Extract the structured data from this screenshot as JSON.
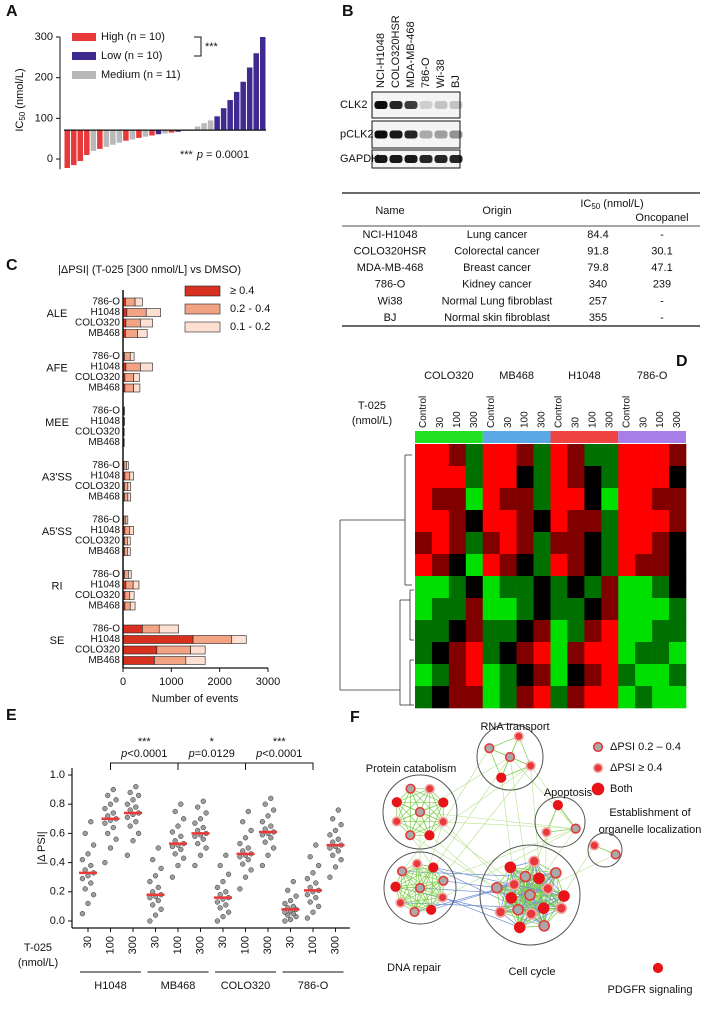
{
  "panel_labels": [
    "A",
    "B",
    "C",
    "D",
    "E",
    "F"
  ],
  "chart_data": [
    {
      "type": "bar",
      "ylabel": {
        "main": "IC",
        "sub": "50",
        "unit": " (nmol/L)"
      },
      "ylim": [
        -25,
        300
      ],
      "yticks": [
        0,
        100,
        200,
        300
      ],
      "baseline": 71,
      "series": [
        {
          "name": "High (n = 10)",
          "color": "#e8393a",
          "values": [
            -22,
            -15,
            -5,
            10,
            null,
            25,
            null,
            null,
            null,
            45,
            null,
            52,
            null,
            58,
            null,
            null,
            65,
            null,
            null,
            70,
            null,
            null,
            null,
            null,
            null,
            null,
            null,
            null,
            null,
            null,
            null
          ]
        },
        {
          "name": "Low (n = 10)",
          "color": "#3f2a8f",
          "values": [
            null,
            null,
            null,
            null,
            null,
            null,
            null,
            null,
            null,
            null,
            null,
            null,
            null,
            null,
            61,
            null,
            null,
            67,
            null,
            null,
            null,
            null,
            null,
            105,
            125,
            145,
            165,
            190,
            225,
            260,
            300
          ]
        },
        {
          "name": "Medium (n = 11)",
          "color": "#b9b9b9",
          "values": [
            null,
            null,
            null,
            null,
            20,
            null,
            30,
            35,
            40,
            null,
            48,
            null,
            55,
            null,
            null,
            63,
            null,
            null,
            69,
            null,
            80,
            88,
            95,
            null,
            null,
            null,
            null,
            null,
            null,
            null,
            null
          ]
        }
      ],
      "legend_bracket": "***",
      "pvalue": {
        "stars": "***",
        "p": "p",
        "text": "= 0.0001"
      }
    },
    {
      "type": "stacked_barh",
      "title": "|ΔPSI|  (T-025 [300 nmol/L] vs DMSO)",
      "groups": [
        "ALE",
        "AFE",
        "MEE",
        "A3'SS",
        "A5'SS",
        "RI",
        "SE"
      ],
      "cell_lines": [
        "786-O",
        "H1048",
        "COLO320",
        "MB468"
      ],
      "xlim": [
        0,
        3000
      ],
      "xticks": [
        0,
        1000,
        2000,
        3000
      ],
      "xlabel": "Number of events",
      "series": [
        {
          "name": "≥ 0.4",
          "color": "#d7301f",
          "values": [
            50,
            80,
            60,
            50,
            30,
            60,
            40,
            40,
            5,
            5,
            5,
            5,
            20,
            40,
            30,
            30,
            20,
            40,
            30,
            30,
            30,
            60,
            40,
            40,
            400,
            1450,
            700,
            650
          ]
        },
        {
          "name": "0.2 - 0.4",
          "color": "#f2a383",
          "values": [
            200,
            400,
            300,
            250,
            120,
            300,
            180,
            180,
            15,
            15,
            10,
            10,
            50,
            100,
            70,
            70,
            40,
            100,
            60,
            60,
            80,
            150,
            100,
            110,
            350,
            800,
            700,
            650
          ]
        },
        {
          "name": "0.1 - 0.2",
          "color": "#fde0d2",
          "values": [
            150,
            300,
            250,
            200,
            80,
            250,
            120,
            130,
            10,
            10,
            10,
            10,
            40,
            80,
            60,
            60,
            40,
            80,
            60,
            60,
            60,
            120,
            90,
            100,
            400,
            300,
            300,
            400
          ]
        }
      ]
    },
    {
      "type": "heatmap",
      "cell_lines": [
        "COLO320",
        "MB468",
        "H1048",
        "786-O"
      ],
      "doses": [
        "Control",
        "30",
        "100",
        "300"
      ],
      "dose_label": [
        "T-025",
        "(nmol/L)"
      ],
      "group_colors": [
        "#22e022",
        "#5aa9e6",
        "#ee4444",
        "#a77ee8"
      ],
      "colors": {
        "high": "#ff0000",
        "mid": "#000000",
        "low": "#00e000"
      },
      "clim": [
        -1,
        1
      ],
      "values": [
        [
          1,
          1,
          0.5,
          -0.5,
          1,
          1,
          0.5,
          -0.5,
          1,
          0.5,
          -0.5,
          -0.5,
          1,
          1,
          1,
          0.5
        ],
        [
          1,
          1,
          1,
          -0.5,
          1,
          1,
          0,
          -0.5,
          1,
          0.5,
          0,
          -0.5,
          1,
          1,
          1,
          0
        ],
        [
          1,
          0.5,
          0.5,
          -1,
          1,
          0.5,
          0.5,
          -0.5,
          1,
          1,
          0,
          -1,
          1,
          1,
          0.5,
          0.5
        ],
        [
          1,
          1,
          0.5,
          0,
          1,
          1,
          0.5,
          0,
          1,
          0.5,
          0.5,
          -0.5,
          1,
          1,
          1,
          0.5
        ],
        [
          0.5,
          1,
          0.5,
          -0.5,
          0.5,
          1,
          0.5,
          -0.5,
          0.5,
          0.5,
          0,
          -0.5,
          1,
          1,
          0.5,
          0
        ],
        [
          1,
          0.5,
          0,
          -1,
          1,
          0.5,
          0,
          -0.5,
          1,
          0.5,
          0,
          -0.5,
          1,
          0.5,
          0.5,
          0
        ],
        [
          -1,
          -1,
          -0.5,
          0,
          -1,
          -0.5,
          -0.5,
          0,
          -0.5,
          0,
          -0.5,
          0.5,
          -1,
          -1,
          -0.5,
          0
        ],
        [
          -1,
          -0.5,
          -0.5,
          0.5,
          -1,
          -1,
          -0.5,
          0,
          -0.5,
          -0.5,
          0,
          0.5,
          -1,
          -1,
          -1,
          -0.5
        ],
        [
          -0.5,
          -0.5,
          0,
          0.5,
          -0.5,
          -0.5,
          0,
          0.5,
          -1,
          -0.5,
          0.5,
          1,
          -1,
          -1,
          -0.5,
          -0.5
        ],
        [
          -0.5,
          0,
          0.5,
          1,
          -0.5,
          0,
          0.5,
          1,
          -1,
          0.5,
          1,
          1,
          -1,
          -0.5,
          -0.5,
          -1
        ],
        [
          -1,
          -0.5,
          0.5,
          1,
          -1,
          -0.5,
          0,
          0.5,
          -1,
          0,
          0.5,
          1,
          -0.5,
          -1,
          -1,
          -0.5
        ],
        [
          -0.5,
          0,
          0.5,
          0.5,
          -1,
          -0.5,
          0.5,
          1,
          -0.5,
          0.5,
          1,
          1,
          -1,
          -0.5,
          -1,
          -1
        ]
      ]
    },
    {
      "type": "strip",
      "ylabel": "|Δ PSI|",
      "dose_label": [
        "T-025",
        "(nmol/L)"
      ],
      "groups": [
        "H1048",
        "MB468",
        "COLO320",
        "786-O"
      ],
      "doses": [
        "30",
        "100",
        "300"
      ],
      "ylim": [
        0,
        1
      ],
      "yticks": [
        {
          "value": 0,
          "label": "0.0"
        },
        0.2,
        0.4,
        0.6,
        0.8,
        {
          "value": 1,
          "label": "1.0"
        }
      ],
      "point_color": "#8c8c8c",
      "median_color": "#e8393a",
      "values": [
        [
          0.05,
          0.12,
          0.18,
          0.22,
          0.26,
          0.29,
          0.31,
          0.33,
          0.35,
          0.38,
          0.42,
          0.46,
          0.52,
          0.6,
          0.68
        ],
        [
          0.4,
          0.5,
          0.56,
          0.6,
          0.64,
          0.67,
          0.69,
          0.7,
          0.72,
          0.74,
          0.77,
          0.8,
          0.83,
          0.86,
          0.9
        ],
        [
          0.45,
          0.55,
          0.6,
          0.65,
          0.68,
          0.71,
          0.73,
          0.74,
          0.76,
          0.78,
          0.8,
          0.83,
          0.86,
          0.88,
          0.92
        ],
        [
          0,
          0.04,
          0.08,
          0.11,
          0.14,
          0.16,
          0.17,
          0.18,
          0.2,
          0.23,
          0.27,
          0.31,
          0.36,
          0.42,
          0.5
        ],
        [
          0.3,
          0.38,
          0.43,
          0.46,
          0.49,
          0.51,
          0.52,
          0.53,
          0.55,
          0.58,
          0.61,
          0.65,
          0.7,
          0.75,
          0.8
        ],
        [
          0.38,
          0.45,
          0.5,
          0.53,
          0.56,
          0.58,
          0.59,
          0.6,
          0.62,
          0.64,
          0.67,
          0.7,
          0.74,
          0.78,
          0.82
        ],
        [
          0,
          0.03,
          0.06,
          0.09,
          0.11,
          0.13,
          0.15,
          0.16,
          0.18,
          0.2,
          0.23,
          0.27,
          0.32,
          0.38,
          0.45
        ],
        [
          0.22,
          0.3,
          0.35,
          0.39,
          0.42,
          0.44,
          0.45,
          0.46,
          0.48,
          0.5,
          0.53,
          0.57,
          0.62,
          0.68,
          0.75
        ],
        [
          0.38,
          0.45,
          0.5,
          0.54,
          0.57,
          0.59,
          0.6,
          0.61,
          0.63,
          0.65,
          0.68,
          0.72,
          0.76,
          0.8,
          0.84
        ],
        [
          0,
          0.01,
          0.03,
          0.04,
          0.05,
          0.06,
          0.07,
          0.08,
          0.09,
          0.1,
          0.12,
          0.14,
          0.17,
          0.21,
          0.27
        ],
        [
          0.02,
          0.06,
          0.1,
          0.13,
          0.16,
          0.18,
          0.2,
          0.21,
          0.23,
          0.26,
          0.29,
          0.33,
          0.38,
          0.44,
          0.52
        ],
        [
          0.3,
          0.37,
          0.42,
          0.45,
          0.48,
          0.5,
          0.51,
          0.52,
          0.54,
          0.56,
          0.59,
          0.62,
          0.66,
          0.7,
          0.76
        ]
      ],
      "medians": [
        0.33,
        0.7,
        0.74,
        0.18,
        0.53,
        0.6,
        0.16,
        0.46,
        0.61,
        0.08,
        0.21,
        0.52
      ],
      "comparisons": [
        {
          "stars": "***",
          "p": "p",
          "text": "<0.0001"
        },
        {
          "stars": "*",
          "p": "p",
          "text": "=0.0129"
        },
        {
          "stars": "***",
          "p": "p",
          "text": "<0.0001"
        }
      ]
    }
  ],
  "blot": {
    "lanes": [
      "NCI-H1048",
      "COLO320HSR",
      "MDA-MB-468",
      "786-O",
      "Wi-38",
      "BJ"
    ],
    "rows": [
      "CLK2",
      "pCLK2",
      "GAPDH"
    ]
  },
  "table": {
    "header": {
      "name": "Name",
      "origin": "Origin",
      "ic50": {
        "main": "IC",
        "sub": "50",
        "unit": "  (nmol/L)"
      },
      "oncopanel": "Oncopanel"
    },
    "rows": [
      [
        "NCI-H1048",
        "Lung cancer",
        "84.4",
        "-"
      ],
      [
        "COLO320HSR",
        "Colorectal cancer",
        "91.8",
        "30.1"
      ],
      [
        "MDA-MB-468",
        "Breast cancer",
        "79.8",
        "47.1"
      ],
      [
        "786-O",
        "Kidney cancer",
        "340",
        "239"
      ],
      [
        "Wi38",
        "Normal Lung fibroblast",
        "257",
        "-"
      ],
      [
        "BJ",
        "Normal skin fibroblast",
        "355",
        "-"
      ]
    ]
  },
  "network": {
    "clusters": [
      [
        "RNA transport"
      ],
      [
        "Protein catabolism"
      ],
      [
        "Apoptosis"
      ],
      [
        "Establishment of",
        "organelle localization"
      ],
      [
        "DNA repair"
      ],
      [
        "Cell cycle"
      ],
      [
        "PDGFR signaling"
      ]
    ],
    "legend": [
      "ΔPSI 0.2 – 0.4",
      "ΔPSI ≥ 0.4",
      "Both"
    ]
  }
}
